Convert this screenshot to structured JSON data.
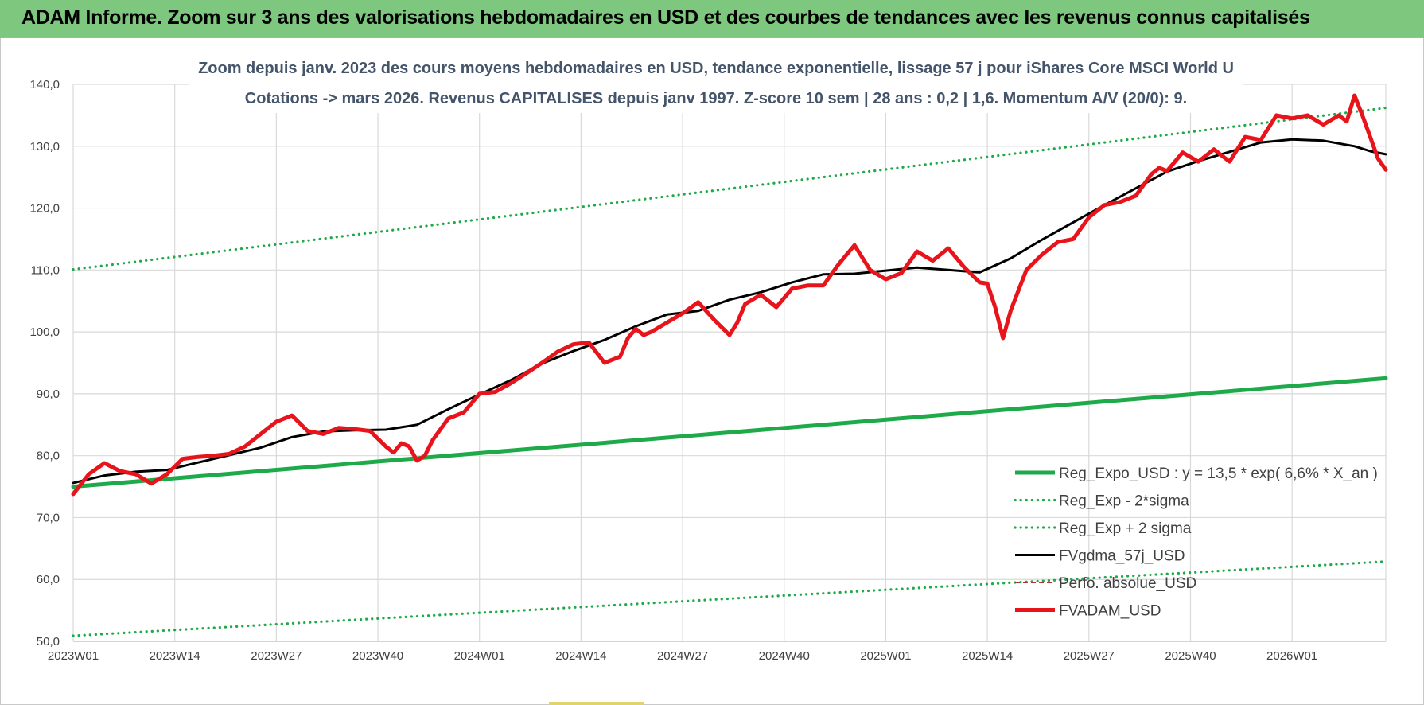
{
  "header": {
    "title": "ADAM Informe. Zoom sur 3 ans des valorisations hebdomadaires en USD et des courbes de tendances avec les revenus connus capitalisés"
  },
  "colors": {
    "banner": "#7ec77e",
    "regression": "#1faa4a",
    "fvgdma": "#000000",
    "fvadam": "#e8141b",
    "perfo": "#b0352f",
    "subtitle": "#44546a"
  },
  "chart_data": {
    "type": "line",
    "title": [
      "Zoom depuis janv. 2023 des cours moyens hebdomadaires en USD, tendance exponentielle, lissage 57 j pour iShares Core MSCI World U",
      "Cotations -> mars 2026. Revenus CAPITALISES depuis janv 1997. Z-score 10 sem | 28 ans : 0,2 | 1,6. Momentum A/V (20/0): 9."
    ],
    "xlabel": "",
    "ylabel": "",
    "ylim": [
      50,
      140
    ],
    "yticks": [
      "50,0",
      "60,0",
      "70,0",
      "80,0",
      "90,0",
      "100,0",
      "110,0",
      "120,0",
      "130,0",
      "140,0"
    ],
    "xlim": [
      0,
      168
    ],
    "x_ticks": [
      {
        "x": 0,
        "label": "2023W01"
      },
      {
        "x": 13,
        "label": "2023W14"
      },
      {
        "x": 26,
        "label": "2023W27"
      },
      {
        "x": 39,
        "label": "2023W40"
      },
      {
        "x": 52,
        "label": "2024W01"
      },
      {
        "x": 65,
        "label": "2024W14"
      },
      {
        "x": 78,
        "label": "2024W27"
      },
      {
        "x": 91,
        "label": "2024W40"
      },
      {
        "x": 104,
        "label": "2025W01"
      },
      {
        "x": 117,
        "label": "2025W14"
      },
      {
        "x": 130,
        "label": "2025W27"
      },
      {
        "x": 143,
        "label": "2025W40"
      },
      {
        "x": 156,
        "label": "2026W01"
      }
    ],
    "grid": true,
    "legend_position": "bottom-right",
    "series": [
      {
        "name": "Reg_Expo_USD : y = 13,5 * exp( 6,6% *  X_an )",
        "style": "solid-thick",
        "color": "#1faa4a",
        "x": [
          0,
          168
        ],
        "values": [
          75.0,
          92.5
        ]
      },
      {
        "name": "Reg_Exp - 2*sigma",
        "style": "dotted",
        "color": "#1faa4a",
        "x": [
          0,
          168
        ],
        "values": [
          50.9,
          62.9
        ]
      },
      {
        "name": "Reg_Exp + 2 sigma",
        "style": "dotted",
        "color": "#1faa4a",
        "x": [
          0,
          168
        ],
        "values": [
          110.1,
          136.2
        ]
      },
      {
        "name": "FVgdma_57j_USD",
        "style": "solid",
        "color": "#000000",
        "x": [
          0,
          4,
          8,
          12,
          16,
          20,
          24,
          28,
          32,
          36,
          40,
          44,
          48,
          52,
          56,
          60,
          64,
          68,
          72,
          76,
          80,
          84,
          88,
          92,
          96,
          100,
          104,
          108,
          112,
          116,
          120,
          124,
          128,
          132,
          136,
          140,
          144,
          148,
          152,
          156,
          160,
          164,
          166,
          168
        ],
        "values": [
          75.6,
          76.8,
          77.4,
          77.7,
          78.9,
          80.1,
          81.3,
          83.0,
          83.9,
          84.1,
          84.2,
          85.0,
          87.5,
          89.9,
          92.2,
          94.9,
          96.9,
          98.7,
          100.9,
          102.8,
          103.4,
          105.2,
          106.4,
          108.0,
          109.3,
          109.4,
          109.9,
          110.4,
          110.0,
          109.6,
          111.9,
          114.9,
          117.7,
          120.5,
          123.2,
          125.9,
          127.6,
          129.1,
          130.6,
          131.1,
          130.9,
          130.0,
          129.2,
          128.7
        ]
      },
      {
        "name": "Perfo. absolue_USD",
        "style": "dashed",
        "color": "#b0352f",
        "x": [],
        "values": []
      },
      {
        "name": "FVADAM_USD",
        "style": "solid-thick",
        "color": "#e8141b",
        "x": [
          0,
          2,
          4,
          6,
          8,
          10,
          12,
          14,
          16,
          18,
          20,
          22,
          24,
          26,
          28,
          30,
          32,
          34,
          36,
          38,
          40,
          41,
          42,
          43,
          44,
          45,
          46,
          48,
          50,
          52,
          54,
          56,
          58,
          60,
          62,
          64,
          66,
          68,
          70,
          71,
          72,
          73,
          74,
          76,
          78,
          80,
          82,
          84,
          85,
          86,
          88,
          90,
          92,
          94,
          96,
          98,
          100,
          102,
          104,
          106,
          108,
          110,
          112,
          114,
          116,
          117,
          118,
          119,
          120,
          122,
          124,
          126,
          128,
          130,
          132,
          134,
          136,
          138,
          139,
          140,
          142,
          144,
          146,
          148,
          150,
          152,
          154,
          156,
          158,
          160,
          162,
          163,
          164,
          165,
          166,
          167,
          168
        ],
        "values": [
          73.8,
          77.0,
          78.8,
          77.5,
          77.0,
          75.5,
          77.0,
          79.5,
          79.8,
          80.0,
          80.3,
          81.5,
          83.5,
          85.5,
          86.5,
          84.0,
          83.5,
          84.5,
          84.3,
          84.0,
          81.5,
          80.5,
          82.0,
          81.5,
          79.2,
          80.0,
          82.5,
          86.0,
          87.0,
          90.0,
          90.3,
          91.7,
          93.3,
          95.0,
          96.8,
          98.0,
          98.3,
          95.0,
          96.0,
          99.0,
          100.5,
          99.5,
          100.0,
          101.5,
          103.0,
          104.8,
          102.0,
          99.5,
          101.5,
          104.5,
          106.0,
          104.0,
          107.0,
          107.5,
          107.5,
          111.0,
          114.0,
          110.0,
          108.5,
          109.5,
          113.0,
          111.5,
          113.5,
          110.5,
          108.0,
          107.8,
          104.0,
          99.0,
          103.5,
          110.0,
          112.5,
          114.5,
          115.0,
          118.5,
          120.5,
          121.0,
          122.0,
          125.5,
          126.5,
          126.0,
          129.0,
          127.5,
          129.5,
          127.5,
          131.5,
          131.0,
          135.0,
          134.5,
          135.0,
          133.5,
          135.0,
          134.0,
          138.2,
          135.0,
          131.5,
          128.0,
          126.2
        ]
      }
    ]
  }
}
